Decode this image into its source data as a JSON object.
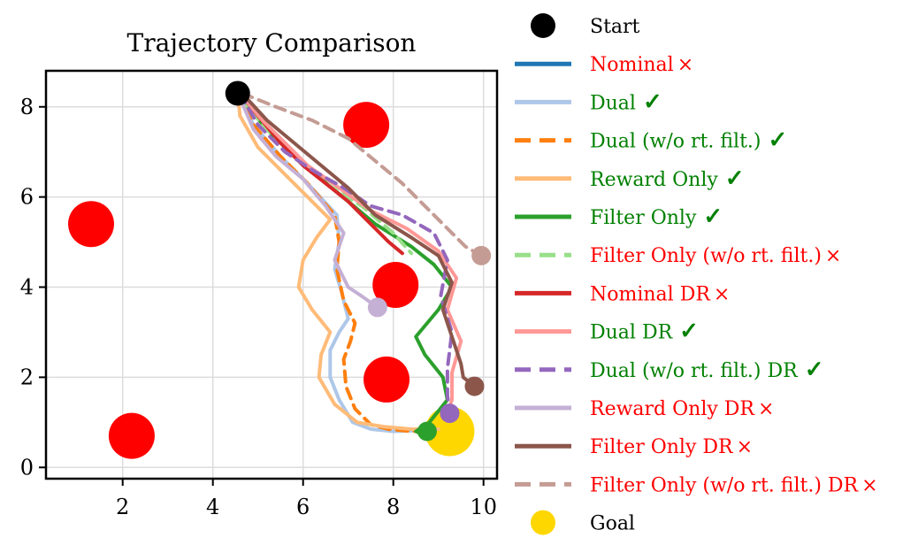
{
  "chart_data": {
    "type": "line",
    "title": "Trajectory Comparison",
    "xlabel": "",
    "ylabel": "",
    "xlim": [
      0.3,
      10.3
    ],
    "ylim": [
      -0.25,
      8.8
    ],
    "xticks": [
      2,
      4,
      6,
      8,
      10
    ],
    "yticks": [
      0,
      2,
      4,
      6,
      8
    ],
    "grid": true,
    "legend_position": "outside-right",
    "start": {
      "x": 4.55,
      "y": 8.3,
      "color": "#000000"
    },
    "goal": {
      "x": 9.25,
      "y": 0.8,
      "color": "#ffd700"
    },
    "obstacles": [
      {
        "x": 1.3,
        "y": 5.4
      },
      {
        "x": 2.2,
        "y": 0.7
      },
      {
        "x": 7.4,
        "y": 7.6
      },
      {
        "x": 8.05,
        "y": 4.05
      },
      {
        "x": 7.85,
        "y": 1.95
      }
    ],
    "obstacle_color": "#ff0000",
    "series": [
      {
        "name": "Nominal",
        "mark": "×",
        "color": "#1f77b4",
        "dash": false,
        "end_dot": false,
        "x": [
          4.55
        ],
        "y": [
          8.3
        ]
      },
      {
        "name": "Dual",
        "mark": "✓",
        "color": "#aec7e8",
        "dash": false,
        "end_dot": false,
        "x": [
          4.55,
          4.9,
          5.5,
          6.1,
          6.75,
          6.8,
          6.7,
          6.85,
          7.0,
          6.8,
          6.6,
          6.6,
          6.8,
          7.1,
          7.5,
          8.0,
          8.6,
          9.0
        ],
        "y": [
          8.3,
          7.6,
          6.9,
          6.3,
          5.6,
          5.0,
          4.4,
          3.9,
          3.3,
          3.0,
          2.6,
          2.0,
          1.5,
          1.0,
          0.85,
          0.8,
          0.82,
          0.85
        ]
      },
      {
        "name": "Dual (w/o rt. filt.)",
        "mark": "✓",
        "color": "#ff7f0e",
        "dash": true,
        "end_dot": false,
        "x": [
          4.55,
          4.9,
          5.5,
          6.1,
          6.7,
          6.8,
          6.75,
          6.9,
          7.15,
          7.05,
          6.9,
          6.95,
          7.15,
          7.5,
          7.9,
          8.4,
          8.8
        ],
        "y": [
          8.3,
          7.6,
          6.9,
          6.3,
          5.6,
          5.0,
          4.4,
          3.7,
          3.2,
          2.8,
          2.4,
          1.8,
          1.3,
          0.95,
          0.85,
          0.8,
          0.82
        ]
      },
      {
        "name": "Reward Only",
        "mark": "✓",
        "color": "#ffbb78",
        "dash": false,
        "end_dot": false,
        "x": [
          4.55,
          4.6,
          5.0,
          5.6,
          6.2,
          6.6,
          6.3,
          6.0,
          5.9,
          6.2,
          6.6,
          6.4,
          6.35,
          6.7,
          7.2,
          7.8,
          8.4,
          9.0
        ],
        "y": [
          8.3,
          7.8,
          7.1,
          6.5,
          5.9,
          5.5,
          5.1,
          4.6,
          4.0,
          3.5,
          3.0,
          2.5,
          2.0,
          1.4,
          1.0,
          0.9,
          0.85,
          0.85
        ]
      },
      {
        "name": "Filter Only",
        "mark": "✓",
        "color": "#2ca02c",
        "dash": false,
        "end_dot": true,
        "x": [
          4.6,
          5.2,
          5.8,
          6.4,
          7.0,
          7.6,
          8.4,
          8.9,
          9.3,
          9.0,
          8.5,
          8.7,
          9.1,
          9.2,
          8.8,
          8.5,
          8.7,
          8.9,
          8.75
        ],
        "y": [
          8.2,
          7.5,
          6.9,
          6.4,
          5.9,
          5.4,
          4.9,
          4.5,
          4.0,
          3.5,
          2.9,
          2.5,
          2.0,
          1.5,
          1.0,
          0.8,
          0.7,
          0.85,
          0.8
        ]
      },
      {
        "name": "Filter Only (w/o rt. filt.)",
        "mark": "×",
        "color": "#98df8a",
        "dash": true,
        "end_dot": false,
        "x": [
          4.6,
          5.2,
          5.8,
          6.5,
          7.3,
          8.0,
          8.4
        ],
        "y": [
          8.2,
          7.5,
          6.9,
          6.3,
          5.8,
          5.2,
          4.75
        ]
      },
      {
        "name": "Nominal DR",
        "mark": "×",
        "color": "#d62728",
        "dash": false,
        "end_dot": false,
        "x": [
          4.6,
          5.0,
          5.5,
          6.0,
          6.5,
          7.0,
          7.5,
          7.9,
          8.2
        ],
        "y": [
          8.3,
          7.8,
          7.2,
          6.7,
          6.3,
          5.9,
          5.4,
          5.0,
          4.75
        ]
      },
      {
        "name": "Dual DR",
        "mark": "✓",
        "color": "#ff9896",
        "dash": false,
        "end_dot": false,
        "x": [
          4.6,
          5.1,
          5.6,
          6.1,
          6.8,
          7.5,
          8.3,
          9.0,
          9.4,
          9.2,
          9.5,
          9.3,
          9.3,
          9.2
        ],
        "y": [
          8.3,
          7.7,
          7.2,
          6.7,
          6.2,
          5.7,
          5.3,
          4.8,
          4.2,
          3.5,
          2.8,
          2.1,
          1.5,
          1.2
        ]
      },
      {
        "name": "Dual (w/o rt. filt.) DR",
        "mark": "✓",
        "color": "#9467bd",
        "dash": true,
        "end_dot": true,
        "x": [
          4.6,
          5.0,
          5.6,
          6.2,
          6.9,
          7.5,
          8.2,
          8.9,
          9.2,
          9.05,
          9.3,
          9.2,
          9.2,
          9.25
        ],
        "y": [
          8.3,
          7.6,
          7.0,
          6.6,
          6.2,
          5.8,
          5.6,
          5.2,
          4.6,
          3.8,
          3.0,
          2.2,
          1.6,
          1.2
        ]
      },
      {
        "name": "Reward Only DR",
        "mark": "×",
        "color": "#c5b0d5",
        "dash": false,
        "end_dot": true,
        "x": [
          4.6,
          4.9,
          5.4,
          6.0,
          6.5,
          6.9,
          6.7,
          7.0,
          7.3,
          7.65
        ],
        "y": [
          8.2,
          7.5,
          6.9,
          6.4,
          5.8,
          5.2,
          4.6,
          4.0,
          3.8,
          3.55
        ]
      },
      {
        "name": "Filter Only DR",
        "mark": "×",
        "color": "#8c564b",
        "dash": false,
        "end_dot": true,
        "x": [
          4.65,
          5.2,
          5.8,
          6.4,
          7.0,
          7.6,
          8.4,
          9.0,
          9.3,
          9.1,
          9.3,
          9.5,
          9.55,
          9.8
        ],
        "y": [
          8.3,
          7.7,
          7.2,
          6.7,
          6.2,
          5.6,
          5.1,
          4.7,
          4.1,
          3.5,
          2.9,
          2.3,
          2.0,
          1.8
        ]
      },
      {
        "name": "Filter Only (w/o rt. filt.) DR",
        "mark": "×",
        "color": "#c49c94",
        "dash": true,
        "end_dot": true,
        "x": [
          4.65,
          5.4,
          6.2,
          7.0,
          7.6,
          8.2,
          8.8,
          9.3,
          9.6,
          9.95
        ],
        "y": [
          8.3,
          8.0,
          7.7,
          7.3,
          6.8,
          6.3,
          5.7,
          5.2,
          4.9,
          4.7
        ]
      }
    ],
    "legend": {
      "start_label": "Start",
      "goal_label": "Goal"
    }
  },
  "legend_status_colors": {
    "check": "#008000",
    "cross": "#ff0000"
  }
}
